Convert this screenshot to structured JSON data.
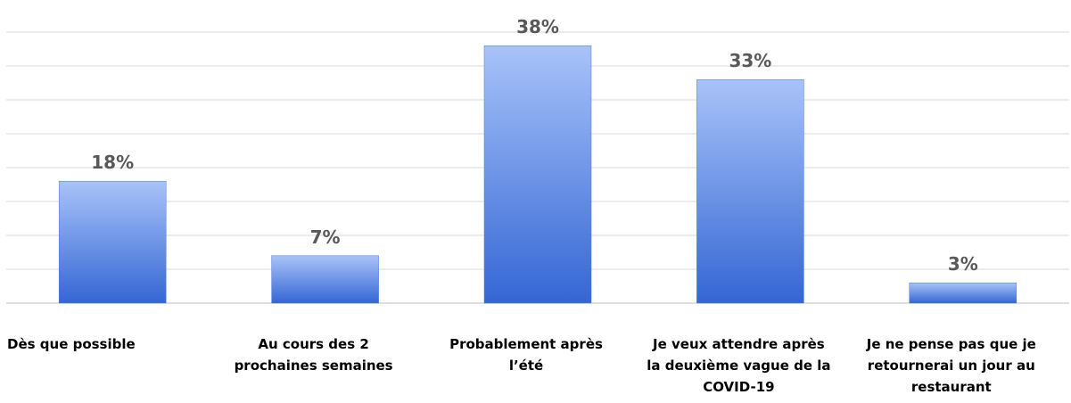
{
  "chart_data": {
    "type": "bar",
    "categories": [
      "Dès que possible",
      "Au cours des 2 prochaines semaines",
      "Probablement après l’été",
      "Je veux attendre après la deuxième vague de la COVID-19",
      "Je ne pense pas que je retournerai un jour au restaurant"
    ],
    "values": [
      18,
      7,
      38,
      33,
      3
    ],
    "value_labels": [
      "18%",
      "7%",
      "38%",
      "33%",
      "3%"
    ],
    "color": "#4a7be0",
    "ylim": [
      0,
      40
    ],
    "yticks": [
      0,
      5,
      10,
      15,
      20,
      25,
      30,
      35,
      40
    ],
    "grid": true
  }
}
